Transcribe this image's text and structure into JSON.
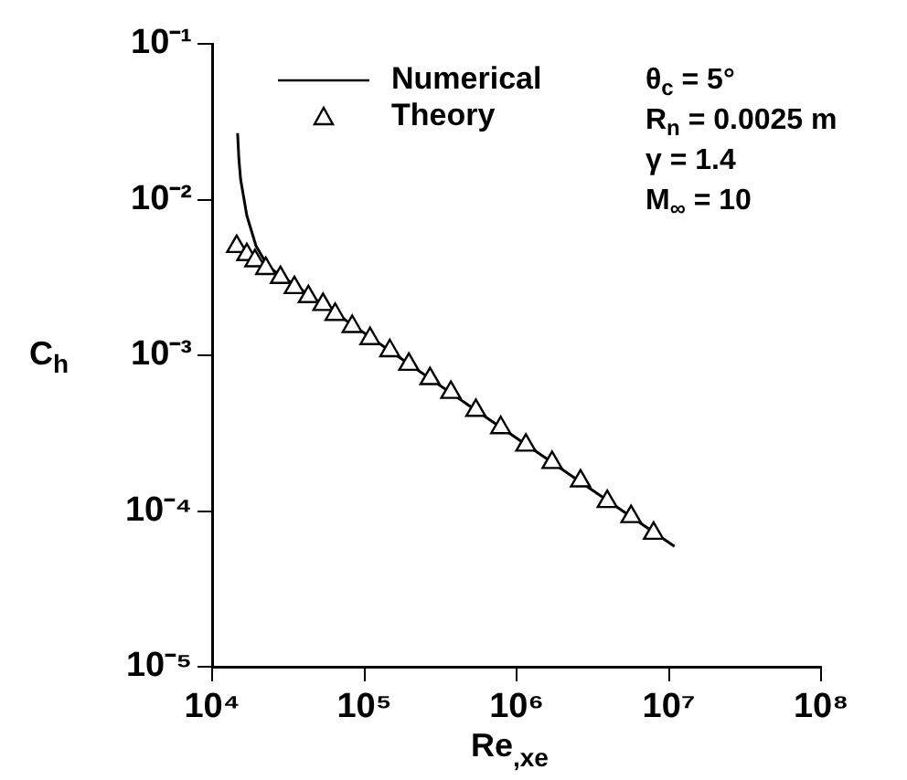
{
  "chart_data": {
    "type": "line",
    "xlabel": "Re$_{,xe}$",
    "ylabel": "C$_{h}$",
    "log": "xy",
    "grid": false,
    "legend": "top left",
    "xlim": [
      10000,
      100000000
    ],
    "xticks": [
      {
        "value": 10000,
        "label": "10⁴"
      },
      {
        "value": 100000,
        "label": "10⁵"
      },
      {
        "value": 1000000,
        "label": "10⁶"
      },
      {
        "value": 10000000,
        "label": "10⁷"
      },
      {
        "value": 100000000,
        "label": "10⁸"
      }
    ],
    "ylim": [
      1e-05,
      0.1
    ],
    "yticks": [
      {
        "value": 1e-05,
        "label": "10⁻⁵"
      },
      {
        "value": 0.0001,
        "label": "10⁻⁴"
      },
      {
        "value": 0.001,
        "label": "10⁻³"
      },
      {
        "value": 0.01,
        "label": "10⁻²"
      },
      {
        "value": 0.1,
        "label": "10⁻¹"
      }
    ],
    "annotations": [
      "θ$_{c}$ = 5°",
      "R$_{n}$ = 0.0025 m",
      "γ = 1.4",
      "M$_{∞}$ = 10"
    ],
    "series": [
      {
        "name": "Numerical",
        "type": "line",
        "color": "#000000",
        "marker": "none",
        "line_style": "solid",
        "x": [
          14700,
          15000,
          15400,
          16900,
          19400,
          23300,
          53500,
          147000,
          540000,
          1710000,
          5650000,
          10900000
        ],
        "values": [
          0.0267,
          0.018,
          0.0134,
          0.0079,
          0.00506,
          0.00371,
          0.00212,
          0.00107,
          0.000443,
          0.000205,
          9.2e-05,
          5.93e-05
        ]
      },
      {
        "name": "Theory",
        "type": "scatter",
        "color": "#000000",
        "marker": "triangle",
        "x": [
          14500,
          16900,
          19100,
          22500,
          28100,
          34700,
          42900,
          53500,
          64300,
          83200,
          109000,
          147000,
          196000,
          270000,
          370000,
          540000,
          787000,
          1150000,
          1710000,
          2630000,
          3940000,
          5650000,
          7940000
        ],
        "values": [
          0.005,
          0.00443,
          0.00405,
          0.00361,
          0.00316,
          0.00272,
          0.00238,
          0.00212,
          0.00183,
          0.00153,
          0.00128,
          0.00107,
          0.000875,
          0.000708,
          0.000578,
          0.000443,
          0.000343,
          0.000265,
          0.000205,
          0.000156,
          0.000115,
          9.2e-05,
          7.2e-05
        ]
      }
    ]
  }
}
